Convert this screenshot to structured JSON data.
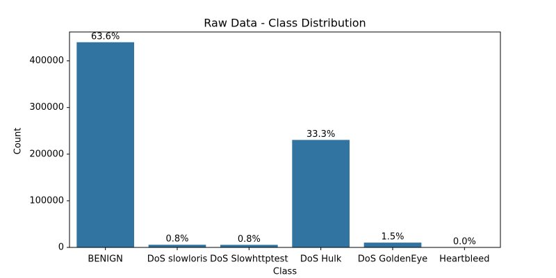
{
  "chart_data": {
    "type": "bar",
    "title": "Raw Data - Class Distribution",
    "x_label": "Class",
    "y_label": "Count",
    "categories": [
      "BENIGN",
      "DoS slowloris",
      "DoS Slowhttptest",
      "DoS Hulk",
      "DoS GoldenEye",
      "Heartbleed"
    ],
    "values": [
      440000,
      5700,
      5500,
      230500,
      10300,
      11
    ],
    "value_labels": [
      "63.6%",
      "0.8%",
      "0.8%",
      "33.3%",
      "1.5%",
      "0.0%"
    ],
    "color": "#3274a1",
    "ylim": [
      0,
      462000
    ],
    "yticks": [
      0,
      100000,
      200000,
      300000,
      400000
    ],
    "grid": false
  }
}
